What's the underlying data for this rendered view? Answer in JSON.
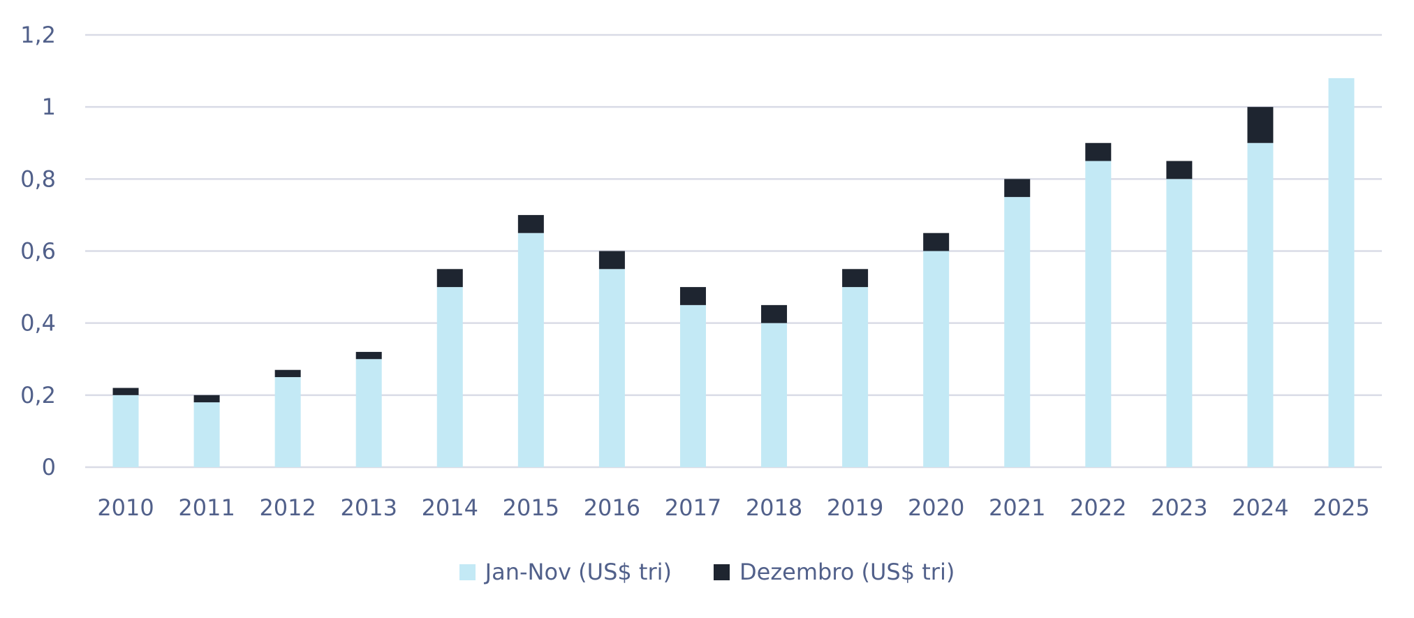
{
  "chart_data": {
    "type": "bar",
    "stacked": true,
    "categories": [
      "2010",
      "2011",
      "2012",
      "2013",
      "2014",
      "2015",
      "2016",
      "2017",
      "2018",
      "2019",
      "2020",
      "2021",
      "2022",
      "2023",
      "2024",
      "2025"
    ],
    "series": [
      {
        "name": "Jan-Nov (US$ tri)",
        "color": "#c3e9f5",
        "values": [
          0.2,
          0.18,
          0.25,
          0.3,
          0.5,
          0.65,
          0.55,
          0.45,
          0.4,
          0.5,
          0.6,
          0.75,
          0.85,
          0.8,
          0.9,
          1.08
        ]
      },
      {
        "name": "Dezembro (US$ tri)",
        "color": "#1e2530",
        "values": [
          0.02,
          0.02,
          0.02,
          0.02,
          0.05,
          0.05,
          0.05,
          0.05,
          0.05,
          0.05,
          0.05,
          0.05,
          0.05,
          0.05,
          0.1,
          0
        ]
      }
    ],
    "y_ticks": [
      "0",
      "0,2",
      "0,4",
      "0,6",
      "0,8",
      "1",
      "1,2"
    ],
    "ylim": [
      0,
      1.2
    ],
    "grid": true,
    "legend_position": "bottom",
    "title": "",
    "xlabel": "",
    "ylabel": ""
  }
}
